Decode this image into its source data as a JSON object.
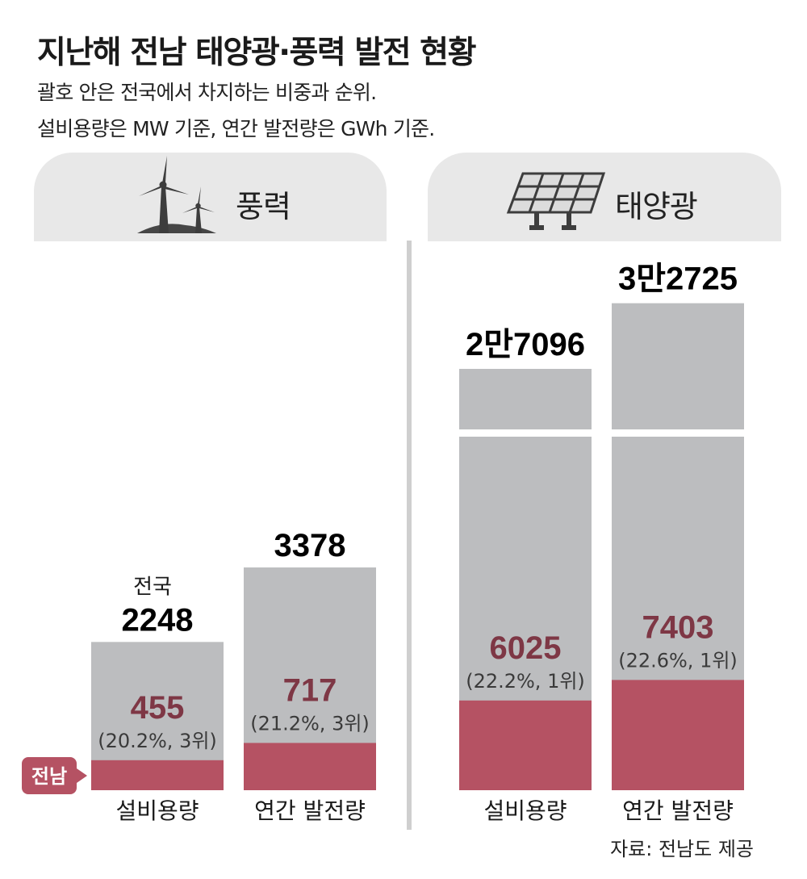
{
  "title": "지난해 전남 태양광·풍력 발전 현황",
  "subtitle_1": "괄호 안은 전국에서 차지하는 비중과 순위.",
  "subtitle_2": "설비용량은 MW 기준, 연간 발전량은 GWh 기준.",
  "source": "자료: 전남도 제공",
  "legend": {
    "total_label": "전국",
    "region_label": "전남"
  },
  "icons": {
    "wind": "wind-turbine-icon",
    "solar": "solar-panel-icon"
  },
  "colors": {
    "total": "#bcbdbf",
    "region": "#b55263",
    "region_text": "#7e3745",
    "tab_bg": "#e8e8e8"
  },
  "chart_data": [
    {
      "type": "bar",
      "panel": "풍력",
      "categories": [
        "설비용량",
        "연간 발전량"
      ],
      "series": [
        {
          "name": "전국",
          "values": [
            2248,
            3378
          ],
          "labels": [
            "2248",
            "3378"
          ]
        },
        {
          "name": "전남",
          "values": [
            455,
            717
          ],
          "labels": [
            "455",
            "717"
          ]
        }
      ],
      "shares": [
        "(20.2%, 3위)",
        "(21.2%, 3위)"
      ]
    },
    {
      "type": "bar",
      "panel": "태양광",
      "categories": [
        "설비용량",
        "연간 발전량"
      ],
      "series": [
        {
          "name": "전국",
          "values": [
            27096,
            32725
          ],
          "labels": [
            "2만7096",
            "3만2725"
          ]
        },
        {
          "name": "전남",
          "values": [
            6025,
            7403
          ],
          "labels": [
            "6025",
            "7403"
          ]
        }
      ],
      "shares": [
        "(22.2%, 1위)",
        "(22.6%, 1위)"
      ],
      "axis_break": true
    }
  ]
}
